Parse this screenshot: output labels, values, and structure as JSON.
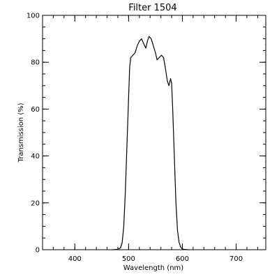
{
  "chart_data": {
    "type": "line",
    "title": "Filter 1504",
    "xlabel": "Wavelength (nm)",
    "ylabel": "Transmission (%)",
    "xlim": [
      340,
      755
    ],
    "ylim": [
      0,
      100
    ],
    "x_ticks": [
      400,
      500,
      600,
      700
    ],
    "y_ticks": [
      0,
      20,
      40,
      60,
      80,
      100
    ],
    "x_minor_step": 20,
    "y_minor_step": 5,
    "grid": false,
    "series": [
      {
        "values": [
          [
            470,
            0.0
          ],
          [
            480,
            0.2
          ],
          [
            485,
            0.8
          ],
          [
            488,
            3
          ],
          [
            491,
            10
          ],
          [
            494,
            25
          ],
          [
            497,
            45
          ],
          [
            500,
            65
          ],
          [
            502,
            78
          ],
          [
            504,
            82
          ],
          [
            508,
            83
          ],
          [
            512,
            84
          ],
          [
            516,
            87
          ],
          [
            520,
            89
          ],
          [
            524,
            90
          ],
          [
            528,
            88
          ],
          [
            532,
            86
          ],
          [
            535,
            89
          ],
          [
            538,
            91
          ],
          [
            542,
            90
          ],
          [
            546,
            87
          ],
          [
            550,
            84
          ],
          [
            553,
            81
          ],
          [
            557,
            82
          ],
          [
            561,
            83
          ],
          [
            565,
            82
          ],
          [
            568,
            78
          ],
          [
            572,
            72
          ],
          [
            575,
            70
          ],
          [
            578,
            73
          ],
          [
            580,
            71
          ],
          [
            582,
            60
          ],
          [
            585,
            40
          ],
          [
            588,
            20
          ],
          [
            591,
            8
          ],
          [
            594,
            3
          ],
          [
            597,
            1
          ],
          [
            600,
            0.3
          ],
          [
            605,
            0.1
          ],
          [
            612,
            0.0
          ]
        ]
      }
    ]
  }
}
